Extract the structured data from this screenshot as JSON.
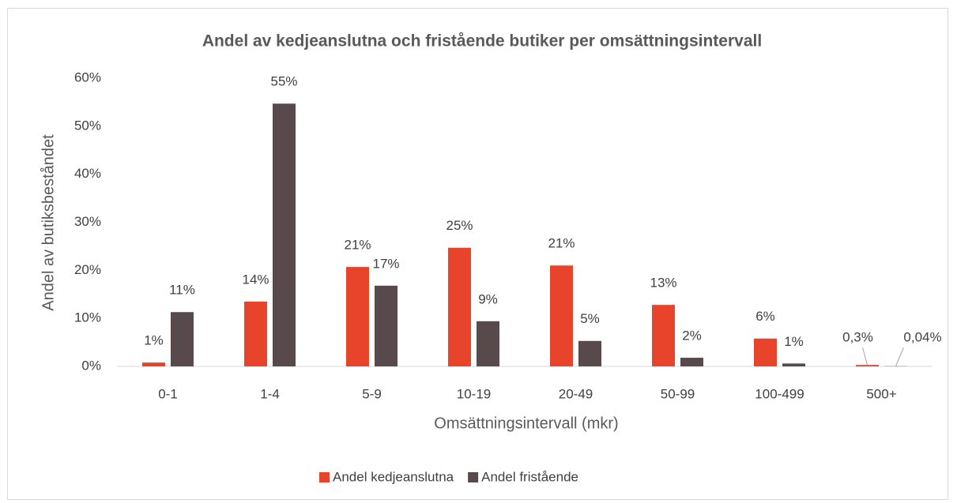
{
  "chart_data": {
    "type": "bar",
    "title": "Andel av kedjeanslutna och fristående butiker per omsättningsintervall",
    "xlabel": "Omsättningsintervall (mkr)",
    "ylabel": "Andel av butiksbeståndet",
    "categories": [
      "0-1",
      "1-4",
      "5-9",
      "10-19",
      "20-49",
      "50-99",
      "100-499",
      "500+"
    ],
    "series": [
      {
        "name": "Andel kedjeanslutna",
        "color": "#e8442c",
        "values": [
          0.8,
          13.5,
          20.7,
          24.7,
          21.0,
          12.8,
          5.8,
          0.3
        ],
        "value_labels": [
          "1%",
          "14%",
          "21%",
          "25%",
          "21%",
          "13%",
          "6%",
          "0,3%"
        ]
      },
      {
        "name": "Andel fristående",
        "color": "#584a4c",
        "values": [
          11.3,
          54.7,
          16.8,
          9.4,
          5.3,
          1.8,
          0.6,
          0.04
        ],
        "value_labels": [
          "11%",
          "55%",
          "17%",
          "9%",
          "5%",
          "2%",
          "1%",
          "0,04%"
        ]
      }
    ],
    "ylim": [
      0,
      60
    ],
    "yticks": [
      {
        "value": 0,
        "label": "0%"
      },
      {
        "value": 10,
        "label": "10%"
      },
      {
        "value": 20,
        "label": "20%"
      },
      {
        "value": 30,
        "label": "30%"
      },
      {
        "value": 40,
        "label": "40%"
      },
      {
        "value": 50,
        "label": "50%"
      },
      {
        "value": 60,
        "label": "60%"
      }
    ],
    "legend": "bottom"
  }
}
